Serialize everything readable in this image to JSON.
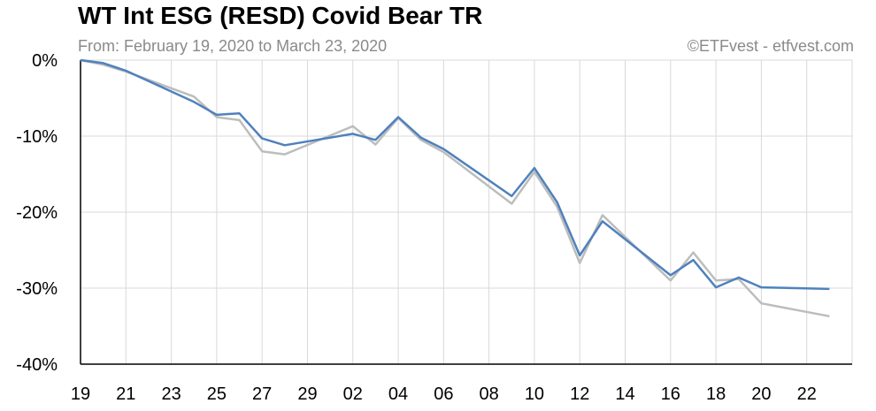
{
  "chart_data": {
    "type": "line",
    "title": "WT Int ESG (RESD) Covid Bear TR",
    "subtitle": "From: February 19, 2020 to March 23, 2020",
    "credit": "©ETFvest - etfvest.com",
    "x": [
      "19",
      "20",
      "21",
      "24",
      "25",
      "26",
      "27",
      "28",
      "02",
      "03",
      "04",
      "05",
      "06",
      "09",
      "10",
      "11",
      "12",
      "13",
      "16",
      "17",
      "18",
      "19",
      "20",
      "23"
    ],
    "x_tick_labels": [
      "19",
      "21",
      "23",
      "25",
      "27",
      "29",
      "02",
      "04",
      "06",
      "08",
      "10",
      "12",
      "14",
      "16",
      "18",
      "20",
      "22"
    ],
    "y_tick_labels": [
      "0%",
      "-10%",
      "-20%",
      "-30%",
      "-40%"
    ],
    "ylim": [
      -40,
      0
    ],
    "grid": true,
    "series": [
      {
        "color": "#bdbdbd",
        "values": [
          0,
          -0.6,
          -1.5,
          -4.8,
          -7.5,
          -7.9,
          -12.0,
          -12.4,
          -8.7,
          -11.1,
          -7.6,
          -10.5,
          -12.1,
          -18.9,
          -14.7,
          -19.3,
          -26.7,
          -20.4,
          -29.0,
          -25.3,
          -29.0,
          -28.8,
          -32.0,
          -33.7
        ]
      },
      {
        "color": "#4f81bd",
        "values": [
          0,
          -0.4,
          -1.4,
          -5.5,
          -7.2,
          -7.0,
          -10.3,
          -11.2,
          -9.7,
          -10.5,
          -7.5,
          -10.2,
          -11.7,
          -17.9,
          -14.2,
          -18.7,
          -25.7,
          -21.2,
          -28.3,
          -26.3,
          -29.9,
          -28.6,
          -29.9,
          -30.1
        ]
      }
    ]
  }
}
